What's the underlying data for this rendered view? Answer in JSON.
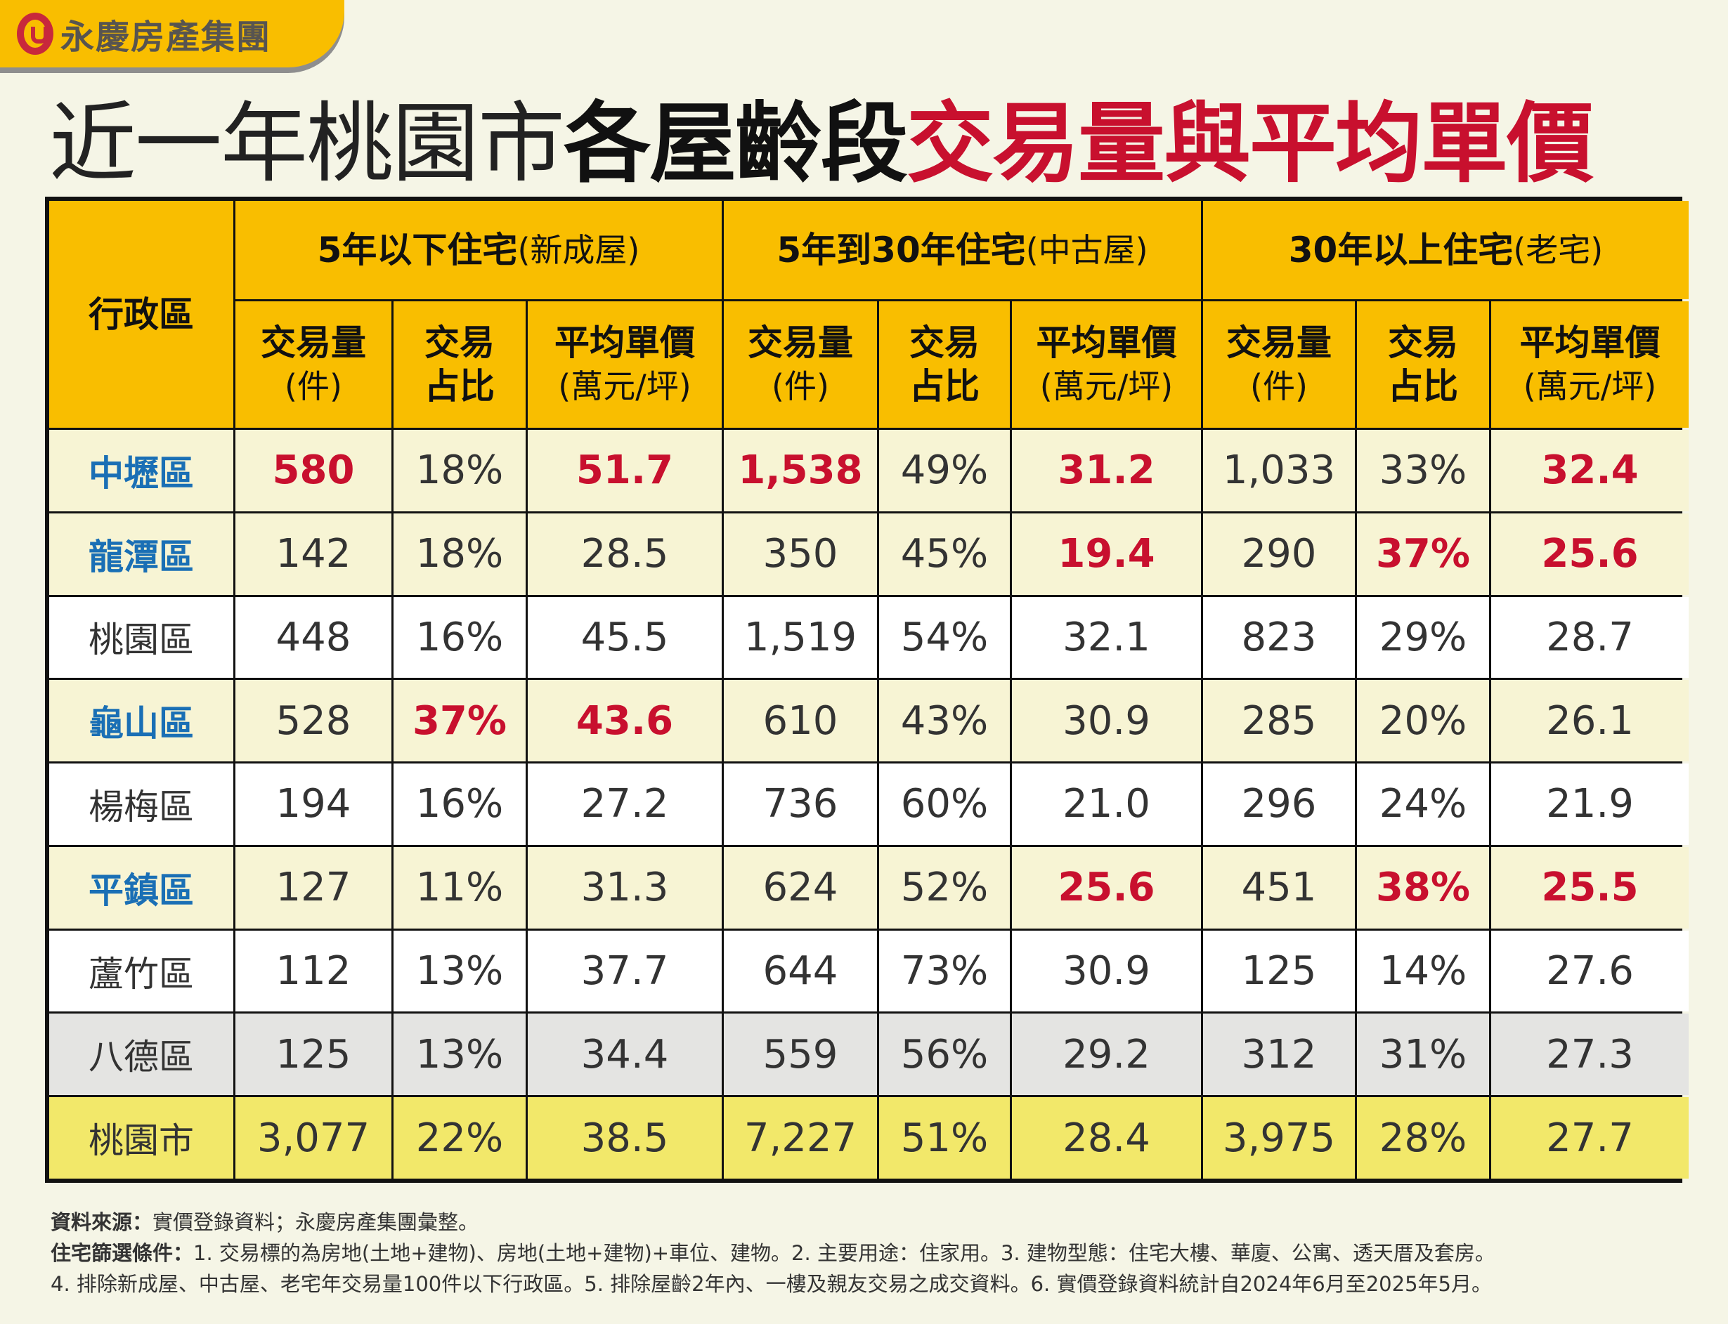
{
  "logo": {
    "text": "永慶房產集團"
  },
  "title": {
    "part1": "近一年桃園市",
    "part2": "各屋齡段",
    "part3": "交易量與平均單價"
  },
  "colors": {
    "header": "#f9be00",
    "accent_red": "#c8102e",
    "accent_blue": "#1a6fb5"
  },
  "table": {
    "district_header": "行政區",
    "groups": [
      {
        "bold": "5年以下住宅",
        "paren": "(新成屋)"
      },
      {
        "bold": "5年到30年住宅",
        "paren": "(中古屋)"
      },
      {
        "bold": "30年以上住宅",
        "paren": "(老宅)"
      }
    ],
    "sub_headers": [
      {
        "line1": "交易量",
        "line2": "(件)"
      },
      {
        "line1": "交易",
        "line2": "占比"
      },
      {
        "line1": "平均單價",
        "line2": "(萬元/坪)"
      }
    ],
    "rows": [
      {
        "name": "中壢區",
        "bg": "cream",
        "name_style": "blue",
        "cells": [
          [
            "580",
            "red"
          ],
          [
            "18%",
            ""
          ],
          [
            "51.7",
            "red"
          ],
          [
            "1,538",
            "red"
          ],
          [
            "49%",
            ""
          ],
          [
            "31.2",
            "red"
          ],
          [
            "1,033",
            ""
          ],
          [
            "33%",
            ""
          ],
          [
            "32.4",
            "red"
          ]
        ]
      },
      {
        "name": "龍潭區",
        "bg": "cream",
        "name_style": "blue",
        "cells": [
          [
            "142",
            ""
          ],
          [
            "18%",
            ""
          ],
          [
            "28.5",
            ""
          ],
          [
            "350",
            ""
          ],
          [
            "45%",
            ""
          ],
          [
            "19.4",
            "red"
          ],
          [
            "290",
            ""
          ],
          [
            "37%",
            "red"
          ],
          [
            "25.6",
            "red"
          ]
        ]
      },
      {
        "name": "桃園區",
        "bg": "white",
        "name_style": "",
        "cells": [
          [
            "448",
            ""
          ],
          [
            "16%",
            ""
          ],
          [
            "45.5",
            ""
          ],
          [
            "1,519",
            ""
          ],
          [
            "54%",
            ""
          ],
          [
            "32.1",
            ""
          ],
          [
            "823",
            ""
          ],
          [
            "29%",
            ""
          ],
          [
            "28.7",
            ""
          ]
        ]
      },
      {
        "name": "龜山區",
        "bg": "cream",
        "name_style": "blue",
        "cells": [
          [
            "528",
            ""
          ],
          [
            "37%",
            "red"
          ],
          [
            "43.6",
            "red"
          ],
          [
            "610",
            ""
          ],
          [
            "43%",
            ""
          ],
          [
            "30.9",
            ""
          ],
          [
            "285",
            ""
          ],
          [
            "20%",
            ""
          ],
          [
            "26.1",
            ""
          ]
        ]
      },
      {
        "name": "楊梅區",
        "bg": "white",
        "name_style": "",
        "cells": [
          [
            "194",
            ""
          ],
          [
            "16%",
            ""
          ],
          [
            "27.2",
            ""
          ],
          [
            "736",
            ""
          ],
          [
            "60%",
            ""
          ],
          [
            "21.0",
            ""
          ],
          [
            "296",
            ""
          ],
          [
            "24%",
            ""
          ],
          [
            "21.9",
            ""
          ]
        ]
      },
      {
        "name": "平鎮區",
        "bg": "cream",
        "name_style": "blue",
        "cells": [
          [
            "127",
            ""
          ],
          [
            "11%",
            ""
          ],
          [
            "31.3",
            ""
          ],
          [
            "624",
            ""
          ],
          [
            "52%",
            ""
          ],
          [
            "25.6",
            "red"
          ],
          [
            "451",
            ""
          ],
          [
            "38%",
            "red"
          ],
          [
            "25.5",
            "red"
          ]
        ]
      },
      {
        "name": "蘆竹區",
        "bg": "white",
        "name_style": "",
        "cells": [
          [
            "112",
            ""
          ],
          [
            "13%",
            ""
          ],
          [
            "37.7",
            ""
          ],
          [
            "644",
            ""
          ],
          [
            "73%",
            ""
          ],
          [
            "30.9",
            ""
          ],
          [
            "125",
            ""
          ],
          [
            "14%",
            ""
          ],
          [
            "27.6",
            ""
          ]
        ]
      },
      {
        "name": "八德區",
        "bg": "grey",
        "name_style": "",
        "cells": [
          [
            "125",
            ""
          ],
          [
            "13%",
            ""
          ],
          [
            "34.4",
            ""
          ],
          [
            "559",
            ""
          ],
          [
            "56%",
            ""
          ],
          [
            "29.2",
            ""
          ],
          [
            "312",
            ""
          ],
          [
            "31%",
            ""
          ],
          [
            "27.3",
            ""
          ]
        ]
      },
      {
        "name": "桃園市",
        "bg": "total",
        "name_style": "",
        "cells": [
          [
            "3,077",
            ""
          ],
          [
            "22%",
            ""
          ],
          [
            "38.5",
            ""
          ],
          [
            "7,227",
            ""
          ],
          [
            "51%",
            ""
          ],
          [
            "28.4",
            ""
          ],
          [
            "3,975",
            ""
          ],
          [
            "28%",
            ""
          ],
          [
            "27.7",
            ""
          ]
        ]
      }
    ]
  },
  "notes": {
    "source_label": "資料來源：",
    "source_text": "實價登錄資料；永慶房產集團彙整。",
    "criteria_label": "住宅篩選條件：",
    "criteria_line1": "1. 交易標的為房地(土地+建物)、房地(土地+建物)+車位、建物。2. 主要用途：住家用。3. 建物型態：住宅大樓、華廈、公寓、透天厝及套房。",
    "criteria_line2": "4. 排除新成屋、中古屋、老宅年交易量100件以下行政區。5. 排除屋齡2年內、一樓及親友交易之成交資料。6. 實價登錄資料統計自2024年6月至2025年5月。"
  }
}
